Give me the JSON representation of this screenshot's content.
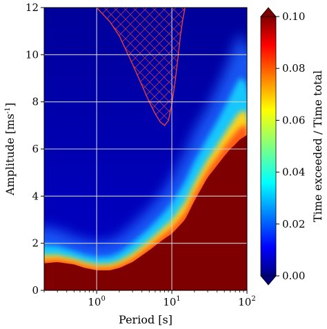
{
  "chart_data": {
    "type": "heatmap",
    "title": "",
    "xlabel": "Period [s]",
    "ylabel": "Amplitude [ms",
    "ylabel_superscript": "-1",
    "ylabel_close": "]",
    "xscale": "log",
    "xlim": [
      0.2,
      100
    ],
    "ylim": [
      0,
      12
    ],
    "x_ticks": [
      {
        "value": 1,
        "base": "10",
        "exp": "0"
      },
      {
        "value": 10,
        "base": "10",
        "exp": "1"
      },
      {
        "value": 100,
        "base": "10",
        "exp": "2"
      }
    ],
    "y_ticks": [
      {
        "value": 0,
        "label": "0"
      },
      {
        "value": 2,
        "label": "2"
      },
      {
        "value": 4,
        "label": "4"
      },
      {
        "value": 6,
        "label": "6"
      },
      {
        "value": 8,
        "label": "8"
      },
      {
        "value": 10,
        "label": "10"
      },
      {
        "value": 12,
        "label": "12"
      }
    ],
    "grid": true,
    "colormap": "jet",
    "colorbar": {
      "label": "Time exceeded / Time total",
      "range": [
        0,
        0.1
      ],
      "extend": "both",
      "ticks": [
        {
          "value": 0.0,
          "label": "0.00"
        },
        {
          "value": 0.02,
          "label": "0.02"
        },
        {
          "value": 0.04,
          "label": "0.04"
        },
        {
          "value": 0.06,
          "label": "0.06"
        },
        {
          "value": 0.08,
          "label": "0.08"
        },
        {
          "value": 0.1,
          "label": "0.10"
        }
      ]
    },
    "saturated_boundary": {
      "description_units": "amplitude at which the fraction of time exceeded reaches the colorbar maximum, by period",
      "period": [
        0.2,
        0.3,
        0.5,
        0.7,
        1.0,
        1.5,
        2.0,
        3.0,
        5.0,
        8.0,
        10,
        15,
        20,
        30,
        40,
        50,
        60,
        70,
        80,
        90,
        100
      ],
      "amplitude": [
        1.15,
        1.2,
        1.1,
        0.95,
        0.85,
        0.85,
        0.95,
        1.2,
        1.7,
        2.2,
        2.4,
        3.0,
        3.8,
        4.8,
        5.3,
        5.7,
        6.0,
        6.2,
        6.4,
        6.5,
        6.6
      ]
    },
    "fade_boundary": {
      "description_units": "amplitude above which the fraction of time exceeded is near zero, by period",
      "period": [
        0.2,
        0.3,
        0.5,
        0.7,
        1.0,
        1.5,
        2.0,
        3.0,
        5.0,
        8.0,
        10,
        15,
        20,
        30,
        40,
        50,
        60,
        70,
        80,
        90,
        100
      ],
      "amplitude": [
        2.4,
        2.3,
        2.0,
        1.85,
        1.75,
        1.8,
        2.0,
        2.5,
        3.2,
        4.0,
        4.5,
        5.6,
        6.5,
        7.5,
        8.3,
        9.0,
        9.6,
        10.2,
        10.6,
        10.5,
        10.0
      ]
    },
    "hatched_region": {
      "description_units": "upper region outlined in red with cross hatching, bounded below by this curve",
      "period": [
        1.0,
        1.5,
        2.0,
        3.0,
        4.0,
        5.0,
        6.0,
        7.0,
        8.0,
        9.0,
        10.0,
        11.0,
        12.0,
        13.0,
        14.0,
        15.0
      ],
      "amplitude": [
        12.0,
        11.4,
        10.8,
        9.6,
        8.7,
        8.0,
        7.5,
        7.15,
        7.0,
        7.2,
        7.9,
        8.8,
        9.8,
        10.8,
        11.5,
        12.0
      ]
    }
  }
}
